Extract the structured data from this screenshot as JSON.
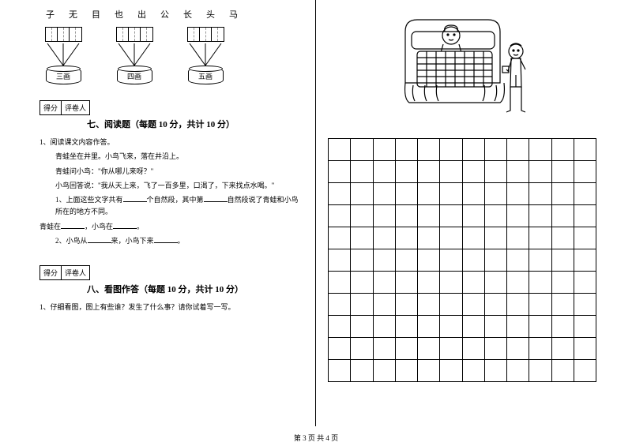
{
  "charSort": {
    "chars": [
      "子",
      "无",
      "目",
      "也",
      "出",
      "公",
      "长",
      "头",
      "马"
    ],
    "groups": [
      {
        "label": "三画",
        "cells": 3
      },
      {
        "label": "四画",
        "cells": 3
      },
      {
        "label": "五画",
        "cells": 3
      }
    ]
  },
  "scoreBox": {
    "col1": "得分",
    "col2": "评卷人"
  },
  "section7": {
    "title": "七、阅读题（每题 10 分，共计 10 分）",
    "q1_label": "1、阅读课文内容作答。",
    "line1": "青蛙坐在井里。小鸟飞来，落在井沿上。",
    "line2": "青蛙问小鸟：\"你从哪儿来呀？\"",
    "line3": "小鸟回答说：\"我从天上来，飞了一百多里，口渴了，下来找点水喝。\"",
    "sub1_a": "1、上面这些文字共有",
    "sub1_b": "个自然段，其中第",
    "sub1_c": "自然段说了青蛙和小鸟所在的地方不同。",
    "sub1_d": "青蛙在",
    "sub1_e": "，小鸟在",
    "sub1_f": "。",
    "sub2_a": "2、小鸟从",
    "sub2_b": "来，小鸟下来",
    "sub2_c": "。"
  },
  "section8": {
    "title": "八、看图作答（每题 10 分，共计 10 分）",
    "q1": "1、仔细看图，图上有些谁？发生了什么事？请你试着写一写。"
  },
  "grid": {
    "rows": 11,
    "cols": 12
  },
  "footer": "第 3 页  共 4 页",
  "colors": {
    "line": "#000000",
    "bg": "#ffffff"
  }
}
